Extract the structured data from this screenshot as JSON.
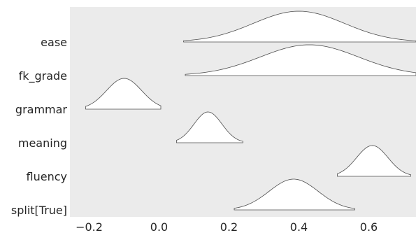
{
  "chart_data": {
    "type": "ridgeline",
    "title": "",
    "xlabel": "",
    "ylabel": "",
    "xlim": [
      -0.255,
      0.735
    ],
    "x_ticks": [
      -0.2,
      0.0,
      0.2,
      0.4,
      0.6
    ],
    "x_tick_labels": [
      "−0.2",
      "0.0",
      "0.2",
      "0.4",
      "0.6"
    ],
    "grid": false,
    "background": "#ebebeb",
    "fill_color": "#ffffff",
    "line_color": "#4d4d4d",
    "series": [
      {
        "name": "ease",
        "center": 0.4,
        "sd": 0.13,
        "hdi": [
          0.07,
          0.735
        ]
      },
      {
        "name": "fk_grade",
        "center": 0.43,
        "sd": 0.14,
        "hdi": [
          0.075,
          0.735
        ]
      },
      {
        "name": "grammar",
        "center": -0.1,
        "sd": 0.05,
        "hdi": [
          -0.21,
          0.005
        ]
      },
      {
        "name": "meaning",
        "center": 0.14,
        "sd": 0.04,
        "hdi": [
          0.05,
          0.24
        ]
      },
      {
        "name": "fluency",
        "center": 0.61,
        "sd": 0.045,
        "hdi": [
          0.51,
          0.72
        ]
      },
      {
        "name": "split[True]",
        "center": 0.385,
        "sd": 0.07,
        "hdi": [
          0.215,
          0.56
        ]
      }
    ]
  }
}
